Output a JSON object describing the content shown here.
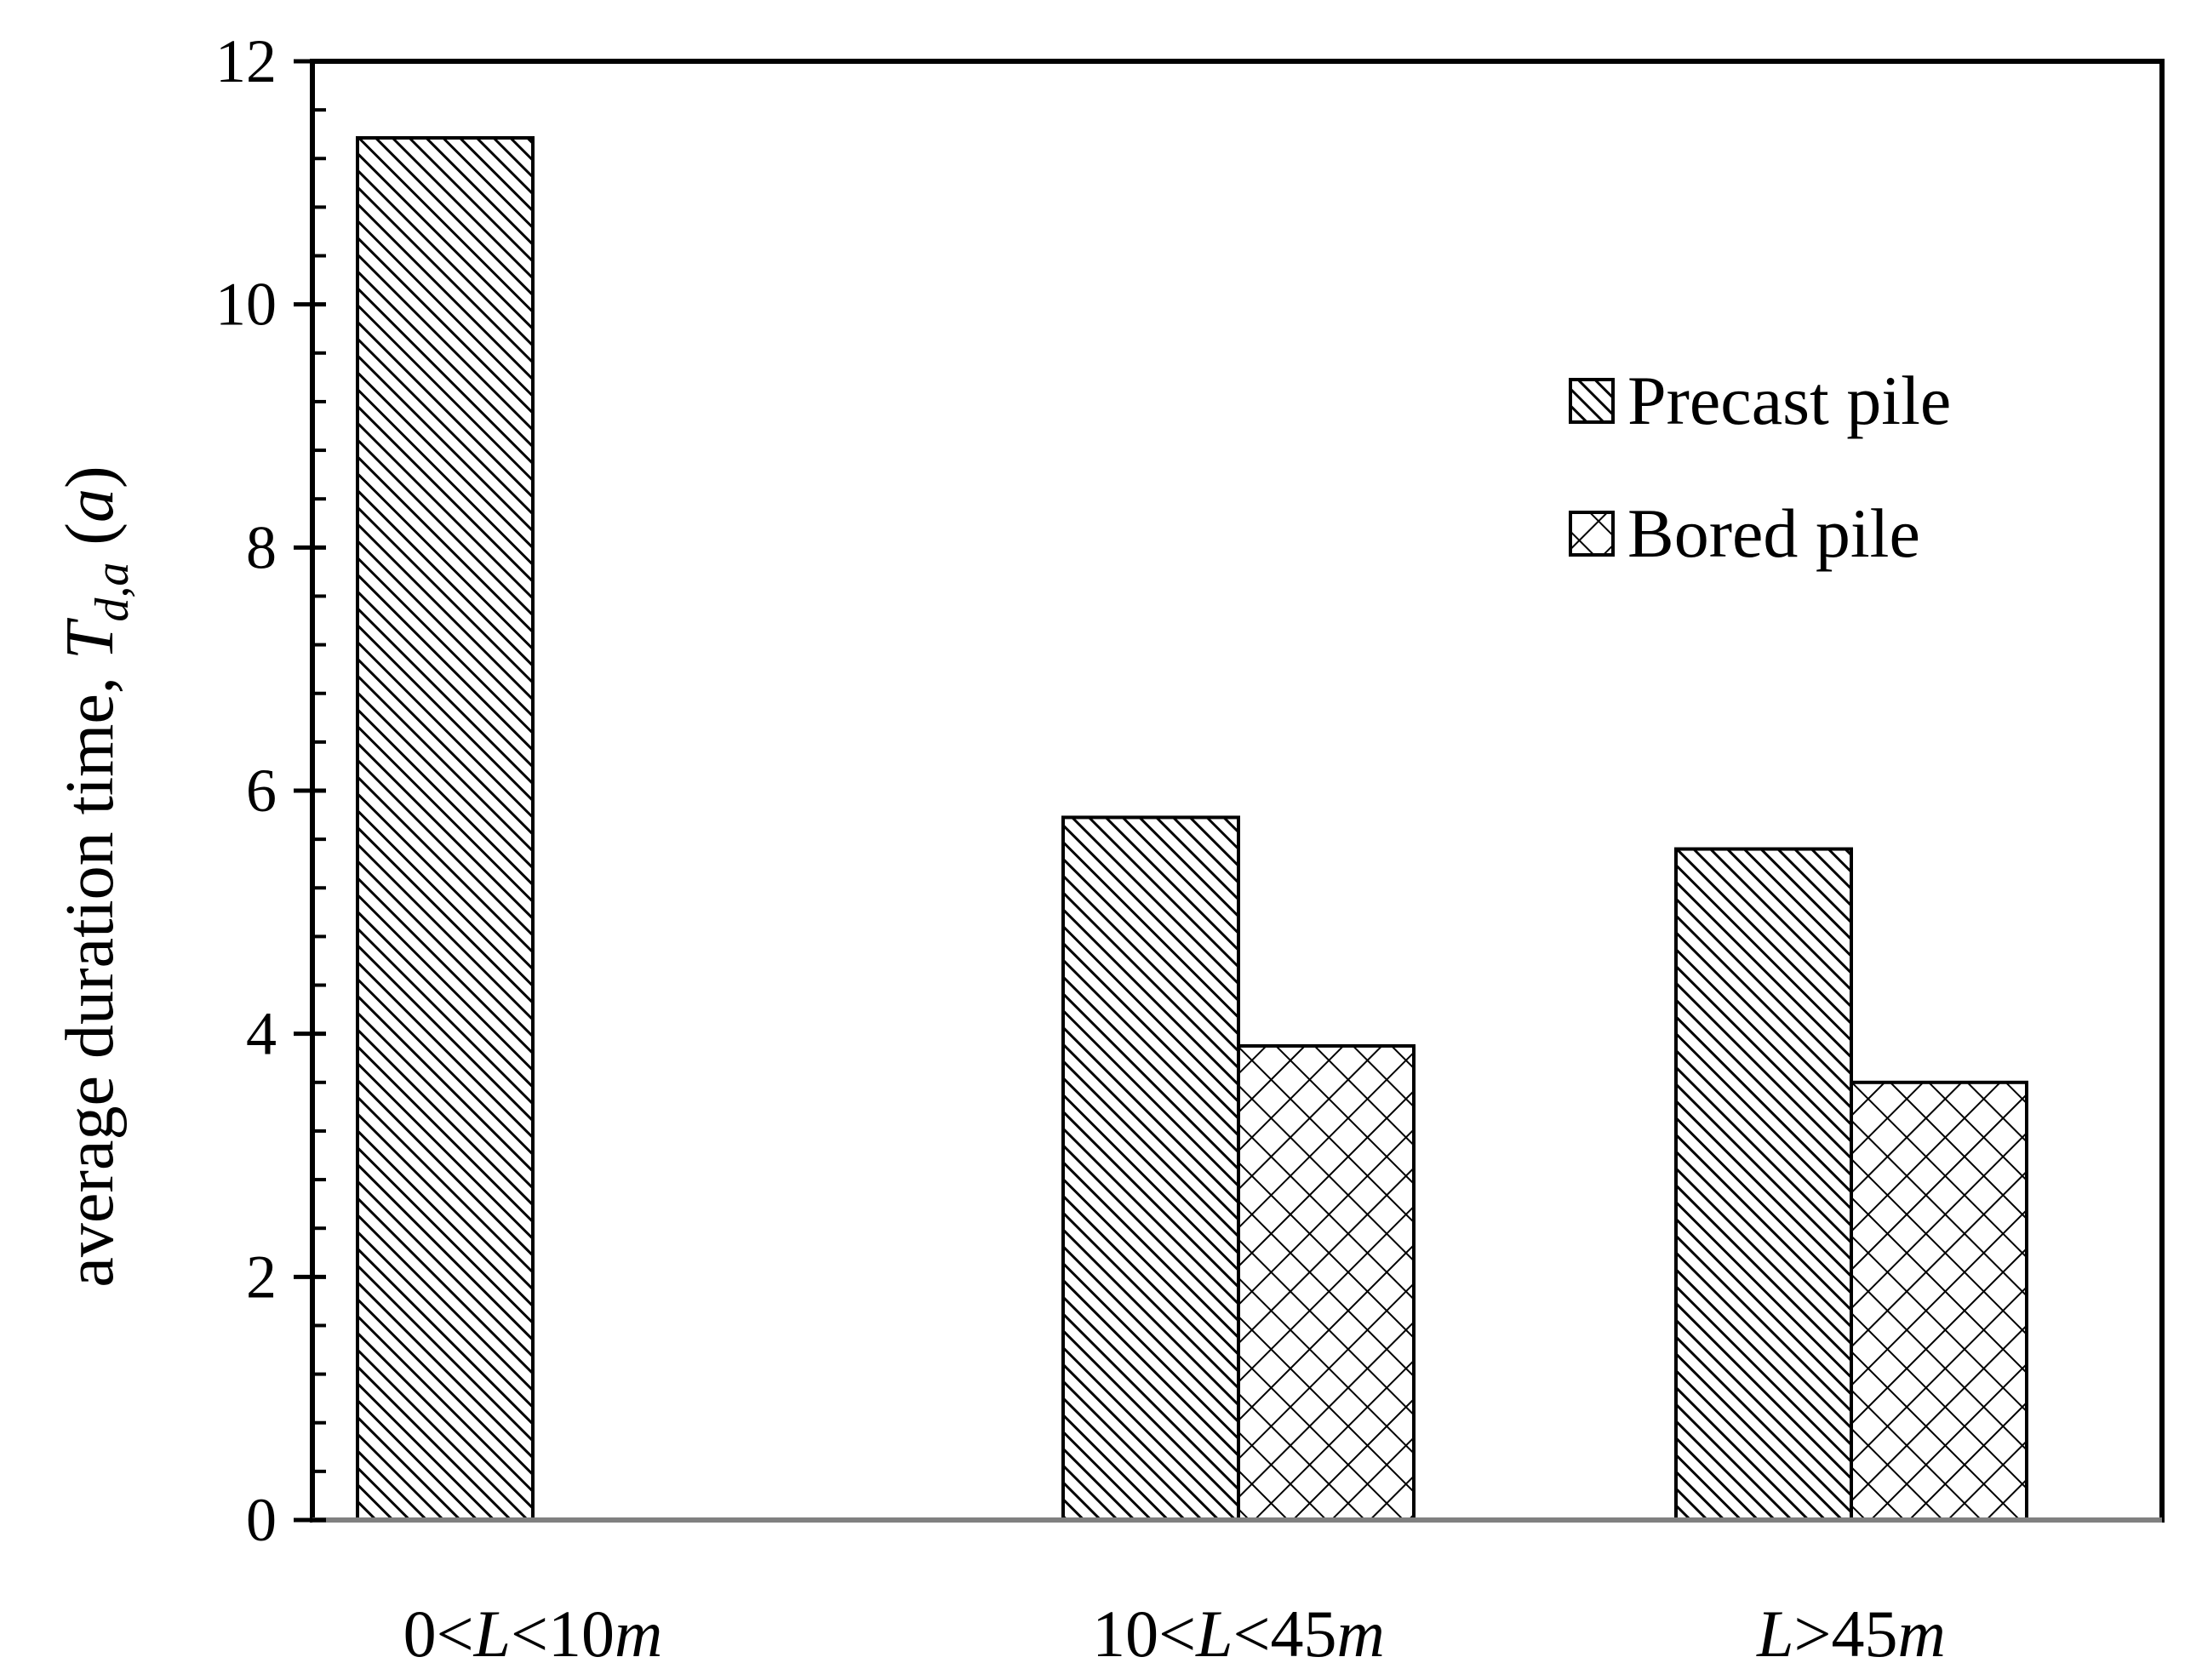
{
  "chart_data": {
    "type": "bar",
    "categories": [
      [
        {
          "t": "0<",
          "i": false
        },
        {
          "t": "L",
          "i": true
        },
        {
          "t": "<10",
          "i": false
        },
        {
          "t": "m",
          "i": true
        }
      ],
      [
        {
          "t": "10<",
          "i": false
        },
        {
          "t": "L",
          "i": true
        },
        {
          "t": "<45",
          "i": false
        },
        {
          "t": "m",
          "i": true
        }
      ],
      [
        {
          "t": "L",
          "i": true
        },
        {
          "t": ">45",
          "i": false
        },
        {
          "t": "m",
          "i": true
        }
      ]
    ],
    "series": [
      {
        "name": "Precast pile",
        "pattern": "diagonal-hatch",
        "values": [
          11.37,
          5.78,
          5.52
        ]
      },
      {
        "name": "Bored pile",
        "pattern": "cross-hatch",
        "values": [
          null,
          3.9,
          3.6
        ]
      }
    ],
    "ylabel": {
      "main": "average duration time, ",
      "symbol": "T",
      "subscript": "d,a",
      "unit": "(a)"
    },
    "ylim": [
      0,
      12
    ],
    "yticks": [
      0,
      2,
      4,
      6,
      8,
      10,
      12
    ],
    "y_minor_step": 0.4,
    "grid": false,
    "legend": {
      "position": "top-right"
    },
    "colors": {
      "stroke": "#000000",
      "fill": "#ffffff",
      "baseline": "#808080"
    }
  }
}
